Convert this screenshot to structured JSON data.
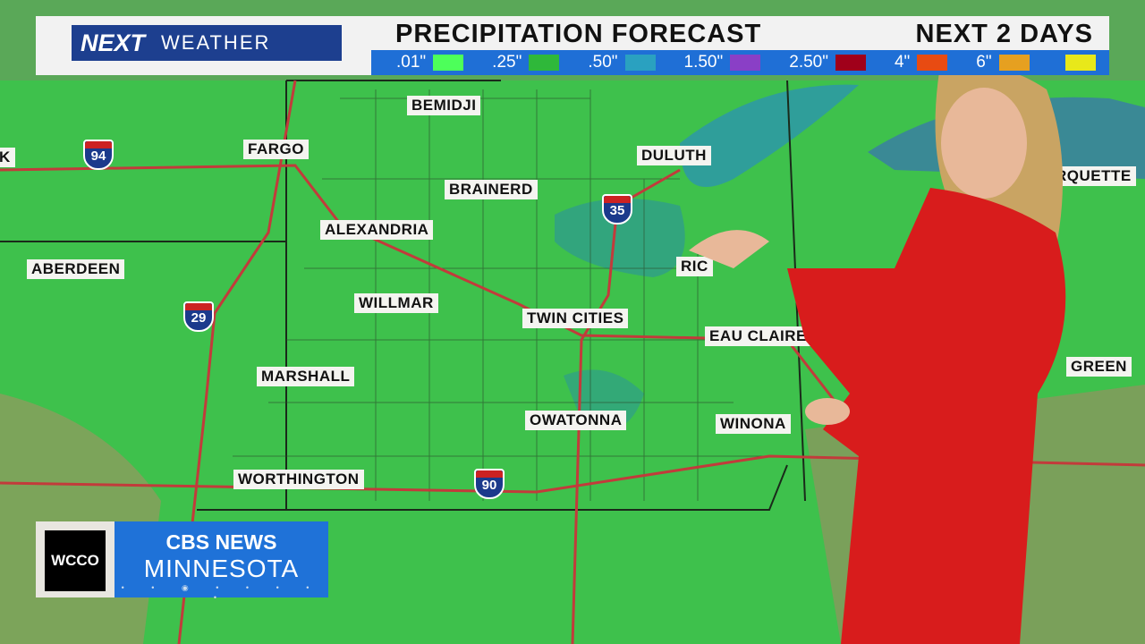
{
  "header": {
    "brand_next": "NEXT",
    "brand_weather": "WEATHER",
    "title": "PRECIPITATION FORECAST",
    "period": "NEXT 2 DAYS"
  },
  "legend": [
    {
      "label": ".01\"",
      "color": "#4dff5a"
    },
    {
      "label": ".25\"",
      "color": "#2fb83a"
    },
    {
      "label": ".50\"",
      "color": "#2aa1c0"
    },
    {
      "label": "1.50\"",
      "color": "#8a3fc6"
    },
    {
      "label": "2.50\"",
      "color": "#a0001a"
    },
    {
      "label": "4\"",
      "color": "#e84b12"
    },
    {
      "label": "6\"",
      "color": "#e6a020"
    },
    {
      "label": "",
      "color": "#e8e81a"
    }
  ],
  "cities": {
    "bemidji": "BEMIDJI",
    "fargo": "FARGO",
    "duluth": "DULUTH",
    "brainerd": "BRAINERD",
    "alexandria": "ALEXANDRIA",
    "aberdeen": "ABERDEEN",
    "willmar": "WILLMAR",
    "twin_cities": "TWIN CITIES",
    "eau_claire": "EAU CLAIRE",
    "marshall": "MARSHALL",
    "owatonna": "OWATONNA",
    "winona": "WINONA",
    "worthington": "WORTHINGTON",
    "marquette_partial": "RQUETTE",
    "green_partial": "GREEN",
    "rice_partial": "RIC",
    "k_partial": "K"
  },
  "interstates": {
    "i94": "94",
    "i35": "35",
    "i29": "29",
    "i90": "90"
  },
  "bug": {
    "station": "WCCO",
    "network": "CBS NEWS",
    "region": "MINNESOTA"
  }
}
